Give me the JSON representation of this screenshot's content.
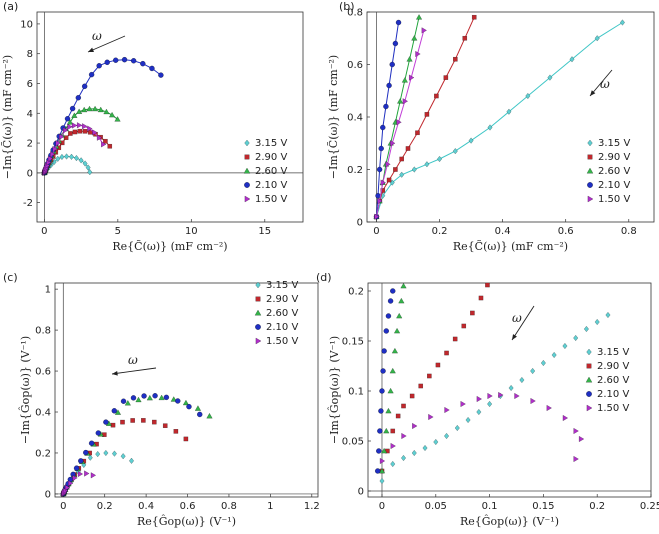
{
  "figure": {
    "colors": {
      "3.15 V": "#5ecfd2",
      "2.90 V": "#c0282d",
      "2.60 V": "#34b34a",
      "2.10 V": "#1f2fc4",
      "1.50 V": "#b02fc9"
    },
    "markers": {
      "3.15 V": "diamond",
      "2.90 V": "square",
      "2.60 V": "triangle",
      "2.10 V": "circle",
      "1.50 V": "right-triangle"
    },
    "fitcolors": {
      "3.15 V": "#3fc6c6",
      "2.90 V": "#c0282d",
      "2.60 V": "#1fa33a",
      "2.10 V": "#2030c0",
      "1.50 V": "#c13fd6"
    },
    "omega_label": "ω"
  },
  "chart_data": [
    {
      "type": "scatter",
      "panel": "(a)",
      "xlabel": "Re{C̃(ω)} (mF cm⁻²)",
      "ylabel": "−Im{C̃(ω)} (mF cm⁻²)",
      "xlim": [
        -0.5,
        17.6
      ],
      "ylim": [
        -3.3,
        10.8
      ],
      "xticks": [
        0,
        5,
        10,
        15
      ],
      "yticks": [
        -2,
        0,
        2,
        4,
        6,
        8,
        10
      ],
      "xticklabels": [
        "0",
        "5",
        "10",
        "15"
      ],
      "yticklabels": [
        "-2",
        "0",
        "2",
        "4",
        "6",
        "8",
        "10"
      ],
      "legend": [
        "3.15 V",
        "2.90 V",
        "2.60 V",
        "2.10 V",
        "1.50 V"
      ],
      "series": [
        {
          "name": "3.15 V",
          "rx": 2.6,
          "ry": 1.1,
          "pc": 0.55,
          "tmax": 3.1,
          "n": 18
        },
        {
          "name": "2.90 V",
          "rx": 4.3,
          "ry": 2.8,
          "pc": 0.55,
          "tmax": 2.45,
          "n": 24
        },
        {
          "name": "2.60 V",
          "rx": 5.5,
          "ry": 4.3,
          "pc": 0.55,
          "tmax": 2.15,
          "n": 26
        },
        {
          "name": "2.10 V",
          "rx": 9.0,
          "ry": 7.6,
          "pc": 0.55,
          "tmax": 2.1,
          "n": 26
        },
        {
          "name": "1.50 V",
          "rx": 3.8,
          "ry": 3.2,
          "pc": 0.55,
          "tmax": 2.5,
          "n": 22
        }
      ]
    },
    {
      "type": "scatter",
      "panel": "(b)",
      "xlabel": "Re{C̃(ω)} (mF cm⁻²)",
      "ylabel": "−Im{C̃(ω)} (mF cm⁻²)",
      "xlim": [
        -0.03,
        0.88
      ],
      "ylim": [
        0,
        0.8
      ],
      "xticks": [
        0,
        0.2,
        0.4,
        0.6,
        0.8
      ],
      "yticks": [
        0,
        0.2,
        0.4,
        0.6,
        0.8
      ],
      "xticklabels": [
        "0",
        "0.2",
        "0.4",
        "0.6",
        "0.8"
      ],
      "yticklabels": [
        "0",
        "0.2",
        "0.4",
        "0.6",
        "0.8"
      ],
      "legend": [
        "3.15 V",
        "2.90 V",
        "2.60 V",
        "2.10 V",
        "1.50 V"
      ],
      "series": [
        {
          "name": "3.15 V",
          "x": [
            0.0,
            0.02,
            0.05,
            0.08,
            0.12,
            0.16,
            0.2,
            0.25,
            0.3,
            0.36,
            0.42,
            0.48,
            0.55,
            0.62,
            0.7,
            0.78
          ],
          "y": [
            0.02,
            0.1,
            0.15,
            0.18,
            0.2,
            0.22,
            0.24,
            0.27,
            0.31,
            0.36,
            0.42,
            0.48,
            0.55,
            0.62,
            0.7,
            0.76
          ]
        },
        {
          "name": "2.90 V",
          "x": [
            0.0,
            0.01,
            0.02,
            0.04,
            0.06,
            0.08,
            0.1,
            0.13,
            0.16,
            0.19,
            0.22,
            0.25,
            0.28,
            0.31
          ],
          "y": [
            0.02,
            0.08,
            0.12,
            0.16,
            0.2,
            0.24,
            0.28,
            0.34,
            0.41,
            0.48,
            0.55,
            0.62,
            0.7,
            0.78
          ]
        },
        {
          "name": "2.60 V",
          "x": [
            0.0,
            0.01,
            0.02,
            0.03,
            0.045,
            0.06,
            0.075,
            0.09,
            0.105,
            0.12,
            0.135
          ],
          "y": [
            0.02,
            0.08,
            0.15,
            0.22,
            0.3,
            0.38,
            0.46,
            0.54,
            0.62,
            0.7,
            0.78
          ]
        },
        {
          "name": "2.10 V",
          "x": [
            0.0,
            0.005,
            0.01,
            0.015,
            0.02,
            0.03,
            0.04,
            0.05,
            0.06,
            0.07
          ],
          "y": [
            0.02,
            0.1,
            0.2,
            0.28,
            0.36,
            0.44,
            0.52,
            0.6,
            0.68,
            0.76
          ]
        },
        {
          "name": "1.50 V",
          "x": [
            0.0,
            0.01,
            0.02,
            0.035,
            0.05,
            0.07,
            0.09,
            0.11,
            0.13,
            0.15
          ],
          "y": [
            0.02,
            0.08,
            0.15,
            0.22,
            0.3,
            0.38,
            0.46,
            0.55,
            0.64,
            0.73
          ]
        }
      ]
    },
    {
      "type": "scatter",
      "panel": "(c)",
      "xlabel": "Re{Ĝop(ω)} (V⁻¹)",
      "ylabel": "−Im{Ĝop(ω)} (V⁻¹)",
      "xlim": [
        -0.04,
        1.23
      ],
      "ylim": [
        -0.015,
        1.03
      ],
      "xticks": [
        0,
        0.2,
        0.4,
        0.6,
        0.8,
        1,
        1.2
      ],
      "yticks": [
        0,
        0.2,
        0.4,
        0.6,
        0.8,
        1
      ],
      "xticklabels": [
        "0",
        "0.2",
        "0.4",
        "0.6",
        "0.8",
        "1",
        "1.2"
      ],
      "yticklabels": [
        "0",
        "0.2",
        "0.4",
        "0.6",
        "0.8",
        "1"
      ],
      "legend": [
        "3.15 V",
        "2.90 V",
        "2.60 V",
        "2.10 V",
        "1.50 V"
      ],
      "series": [
        {
          "name": "3.15 V",
          "rx": 0.35,
          "ry": 0.2,
          "pc": 0.6,
          "tmax": 2.2,
          "n": 16
        },
        {
          "name": "2.90 V",
          "rx": 0.6,
          "ry": 0.36,
          "pc": 0.6,
          "tmax": 2.3,
          "n": 22
        },
        {
          "name": "2.60 V",
          "rx": 0.75,
          "ry": 0.47,
          "pc": 0.6,
          "tmax": 2.2,
          "n": 24
        },
        {
          "name": "2.10 V",
          "rx": 0.7,
          "ry": 0.48,
          "pc": 0.6,
          "tmax": 2.2,
          "n": 24
        },
        {
          "name": "1.50 V",
          "rx": 0.17,
          "ry": 0.1,
          "pc": 0.6,
          "tmax": 2.0,
          "n": 10
        }
      ]
    },
    {
      "type": "scatter",
      "panel": "(d)",
      "xlabel": "Re{Ĝop(ω)} (V⁻¹)",
      "ylabel": "−Im{Ĝop(ω)} (V⁻¹)",
      "xlim": [
        -0.013,
        0.25
      ],
      "ylim": [
        -0.006,
        0.208
      ],
      "xticks": [
        0,
        0.05,
        0.1,
        0.15,
        0.2,
        0.25
      ],
      "yticks": [
        0,
        0.05,
        0.1,
        0.15,
        0.2
      ],
      "xticklabels": [
        "0",
        "0.05",
        "0.1",
        "0.15",
        "0.2",
        "0.25"
      ],
      "yticklabels": [
        "0",
        "0.05",
        "0.1",
        "0.15",
        "0.2"
      ],
      "legend": [
        "3.15 V",
        "2.90 V",
        "2.60 V",
        "2.10 V",
        "1.50 V"
      ],
      "series": [
        {
          "name": "3.15 V",
          "x": [
            0.0,
            0.01,
            0.02,
            0.03,
            0.04,
            0.05,
            0.06,
            0.07,
            0.08,
            0.09,
            0.1,
            0.11,
            0.12,
            0.13,
            0.14,
            0.15,
            0.16,
            0.17,
            0.18,
            0.19,
            0.2,
            0.21
          ],
          "y": [
            0.01,
            0.027,
            0.033,
            0.038,
            0.043,
            0.049,
            0.055,
            0.063,
            0.071,
            0.079,
            0.087,
            0.095,
            0.103,
            0.111,
            0.12,
            0.128,
            0.136,
            0.145,
            0.153,
            0.162,
            0.169,
            0.176
          ]
        },
        {
          "name": "2.90 V",
          "x": [
            0.0,
            0.005,
            0.01,
            0.015,
            0.02,
            0.028,
            0.036,
            0.044,
            0.052,
            0.06,
            0.068,
            0.076,
            0.084,
            0.092,
            0.098
          ],
          "y": [
            0.02,
            0.04,
            0.06,
            0.075,
            0.085,
            0.095,
            0.105,
            0.115,
            0.126,
            0.138,
            0.152,
            0.165,
            0.178,
            0.193,
            0.206
          ]
        },
        {
          "name": "2.60 V",
          "x": [
            0.0,
            0.002,
            0.004,
            0.006,
            0.008,
            0.01,
            0.012,
            0.014,
            0.016,
            0.018,
            0.02
          ],
          "y": [
            0.02,
            0.04,
            0.06,
            0.08,
            0.1,
            0.12,
            0.14,
            0.16,
            0.175,
            0.19,
            0.205
          ]
        },
        {
          "name": "2.10 V",
          "x": [
            -0.004,
            -0.003,
            -0.002,
            -0.001,
            0.0,
            0.001,
            0.002,
            0.004,
            0.006,
            0.008,
            0.01
          ],
          "y": [
            0.02,
            0.04,
            0.06,
            0.08,
            0.1,
            0.12,
            0.14,
            0.16,
            0.175,
            0.19,
            0.2
          ]
        },
        {
          "name": "1.50 V",
          "x": [
            0.0,
            0.01,
            0.02,
            0.03,
            0.045,
            0.06,
            0.075,
            0.09,
            0.1,
            0.11,
            0.125,
            0.14,
            0.155,
            0.17,
            0.18,
            0.185,
            0.18
          ],
          "y": [
            0.03,
            0.045,
            0.055,
            0.065,
            0.074,
            0.081,
            0.087,
            0.092,
            0.095,
            0.096,
            0.095,
            0.09,
            0.083,
            0.073,
            0.06,
            0.052,
            0.032
          ]
        }
      ]
    }
  ]
}
